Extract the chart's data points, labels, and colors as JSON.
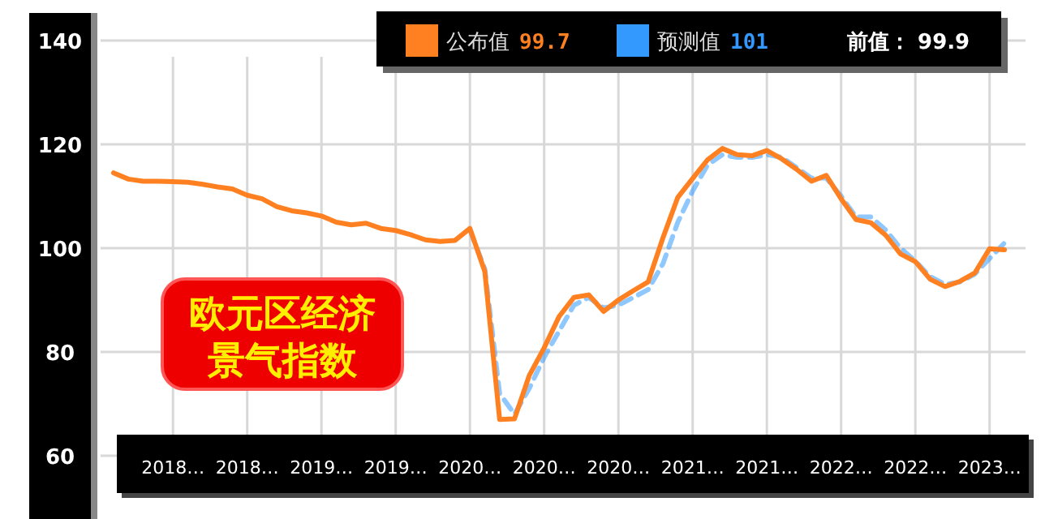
{
  "chart_data": {
    "type": "line",
    "title": "欧元区经济景气指数",
    "categories": [
      null,
      null,
      null,
      null,
      "2018…",
      null,
      null,
      null,
      null,
      "2018…",
      null,
      null,
      null,
      null,
      "2019…",
      null,
      null,
      null,
      null,
      "2019…",
      null,
      null,
      null,
      null,
      "2020…",
      null,
      null,
      null,
      null,
      "2020…",
      null,
      null,
      null,
      null,
      "2020…",
      null,
      null,
      null,
      null,
      "2021…",
      null,
      null,
      null,
      null,
      "2021…",
      null,
      null,
      null,
      null,
      "2022…",
      null,
      null,
      null,
      null,
      "2022…",
      null,
      null,
      null,
      null,
      "2023…",
      null
    ],
    "series": [
      {
        "name": "公布值",
        "color": "#ff8020",
        "line_style": "solid",
        "values": [
          114.5,
          113.3,
          112.9,
          112.9,
          112.8,
          112.7,
          112.3,
          111.8,
          111.4,
          110.2,
          109.5,
          108.0,
          107.2,
          106.8,
          106.2,
          105.0,
          104.5,
          104.8,
          103.8,
          103.4,
          102.6,
          101.6,
          101.3,
          101.5,
          103.8,
          95.5,
          67.0,
          67.1,
          75.5,
          80.8,
          86.8,
          90.5,
          91.0,
          87.8,
          90.0,
          91.8,
          93.5,
          102,
          109.8,
          113.4,
          117,
          119.2,
          118.0,
          117.8,
          118.8,
          117.2,
          115.2,
          112.9,
          114.0,
          109.5,
          105.5,
          104.9,
          102.5,
          98.9,
          97.4,
          94.0,
          92.6,
          93.6,
          95.2,
          99.9,
          99.7
        ]
      },
      {
        "name": "预测值",
        "color": "#3399ff",
        "line_style": "dashed",
        "values": [
          null,
          null,
          null,
          null,
          null,
          null,
          null,
          null,
          null,
          null,
          null,
          null,
          null,
          null,
          null,
          null,
          null,
          null,
          null,
          null,
          null,
          null,
          null,
          null,
          103.5,
          96,
          72,
          68,
          73,
          79,
          84,
          89,
          90.5,
          88.5,
          89,
          90.5,
          92,
          97,
          105,
          111,
          116,
          118,
          117.5,
          117.5,
          118,
          117.5,
          115.5,
          113.5,
          113.5,
          110,
          106,
          106,
          103.5,
          100,
          97.5,
          94.5,
          93,
          93.5,
          95,
          98,
          101
        ]
      }
    ],
    "ylim": [
      60,
      140
    ],
    "yticks": [
      60,
      80,
      100,
      120,
      140
    ],
    "grid": true,
    "legend": "top right",
    "marker": "none",
    "annotations": [
      "99.7",
      "101",
      "前值： 99.9"
    ]
  }
}
